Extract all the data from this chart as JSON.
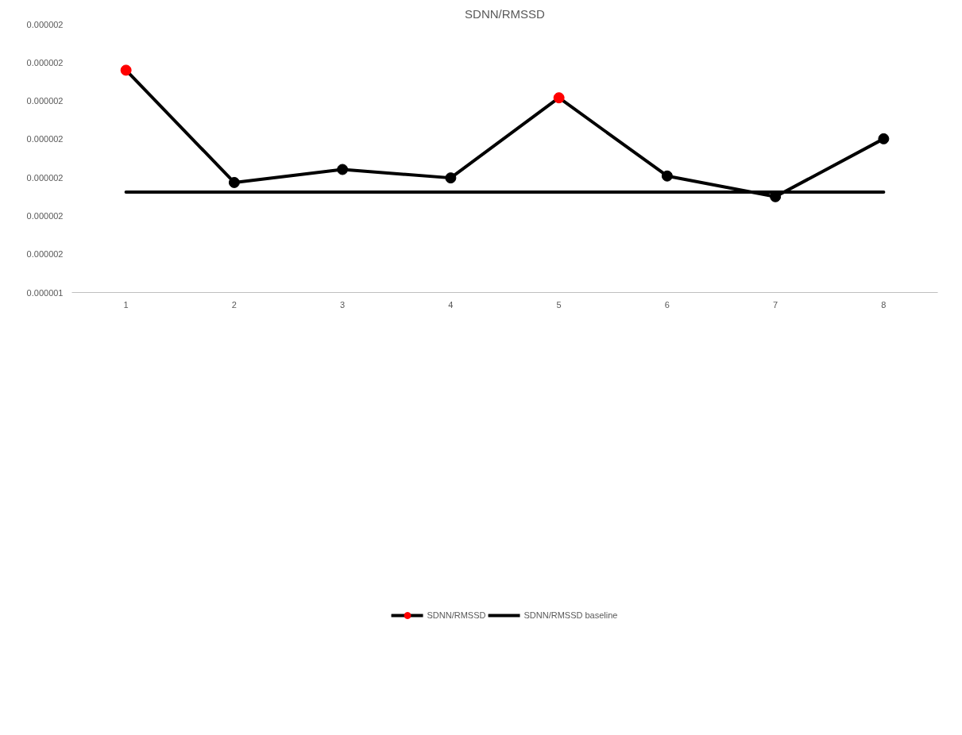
{
  "chart_data": {
    "type": "line",
    "title": "SDNN/RMSSD",
    "categories": [
      "1",
      "2",
      "3",
      "4",
      "5",
      "6",
      "7",
      "8"
    ],
    "series": [
      {
        "name": "SDNN/RMSSD",
        "color": "#000000",
        "marker": "circle",
        "colors": [
          "#ff0000",
          "#000000",
          "#000000",
          "#000000",
          "#ff0000",
          "#000000",
          "#000000",
          "#000000"
        ],
        "values": [
          1.98e-06,
          1.687e-06,
          1.721e-06,
          1.699e-06,
          1.908e-06,
          1.704e-06,
          1.65e-06,
          1.801e-06
        ]
      },
      {
        "name": "SDNN/RMSSD baseline",
        "color": "#000000",
        "marker": "none",
        "values": [
          1.662e-06,
          1.662e-06,
          1.662e-06,
          1.662e-06,
          1.662e-06,
          1.662e-06,
          1.662e-06,
          1.662e-06
        ]
      }
    ],
    "ylim": [
      1.4e-06,
      2.1e-06
    ],
    "yticks": [
      {
        "value": 1.4e-06,
        "label": "0.000001"
      },
      {
        "value": 1.5e-06,
        "label": "0.000002"
      },
      {
        "value": 1.6e-06,
        "label": "0.000002"
      },
      {
        "value": 1.7e-06,
        "label": "0.000002"
      },
      {
        "value": 1.8e-06,
        "label": "0.000002"
      },
      {
        "value": 1.9e-06,
        "label": "0.000002"
      },
      {
        "value": 2e-06,
        "label": "0.000002"
      },
      {
        "value": 2.1e-06,
        "label": "0.000002"
      }
    ],
    "grid": false,
    "legend": "bottom"
  }
}
